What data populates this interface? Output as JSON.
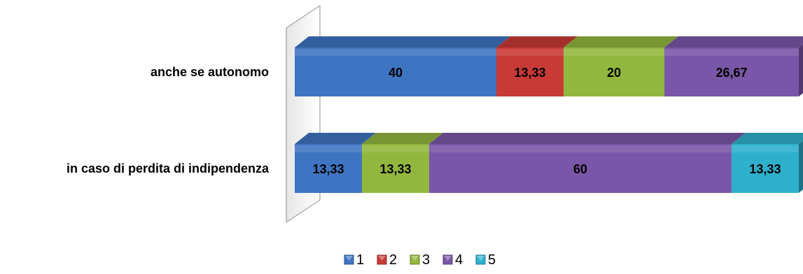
{
  "chart_data": {
    "type": "bar",
    "orientation": "horizontal",
    "stacked": "100%",
    "style": "3d",
    "categories": [
      "anche se autonomo",
      "in caso di perdita di indipendenza"
    ],
    "series": [
      {
        "name": "1",
        "values": [
          40,
          13.33
        ],
        "labels": [
          "40",
          "13,33"
        ],
        "color": "#3F74C2"
      },
      {
        "name": "2",
        "values": [
          13.33,
          0
        ],
        "labels": [
          "13,33",
          ""
        ],
        "color": "#C83A36"
      },
      {
        "name": "3",
        "values": [
          20,
          13.33
        ],
        "labels": [
          "20",
          "13,33"
        ],
        "color": "#92B73E"
      },
      {
        "name": "4",
        "values": [
          26.67,
          60
        ],
        "labels": [
          "26,67",
          "60"
        ],
        "color": "#7A56A8"
      },
      {
        "name": "5",
        "values": [
          0,
          13.33
        ],
        "labels": [
          "",
          "13,33"
        ],
        "color": "#2EB0CC"
      }
    ],
    "xlim": [
      0,
      100
    ],
    "grid": false,
    "legend": "bottom"
  }
}
